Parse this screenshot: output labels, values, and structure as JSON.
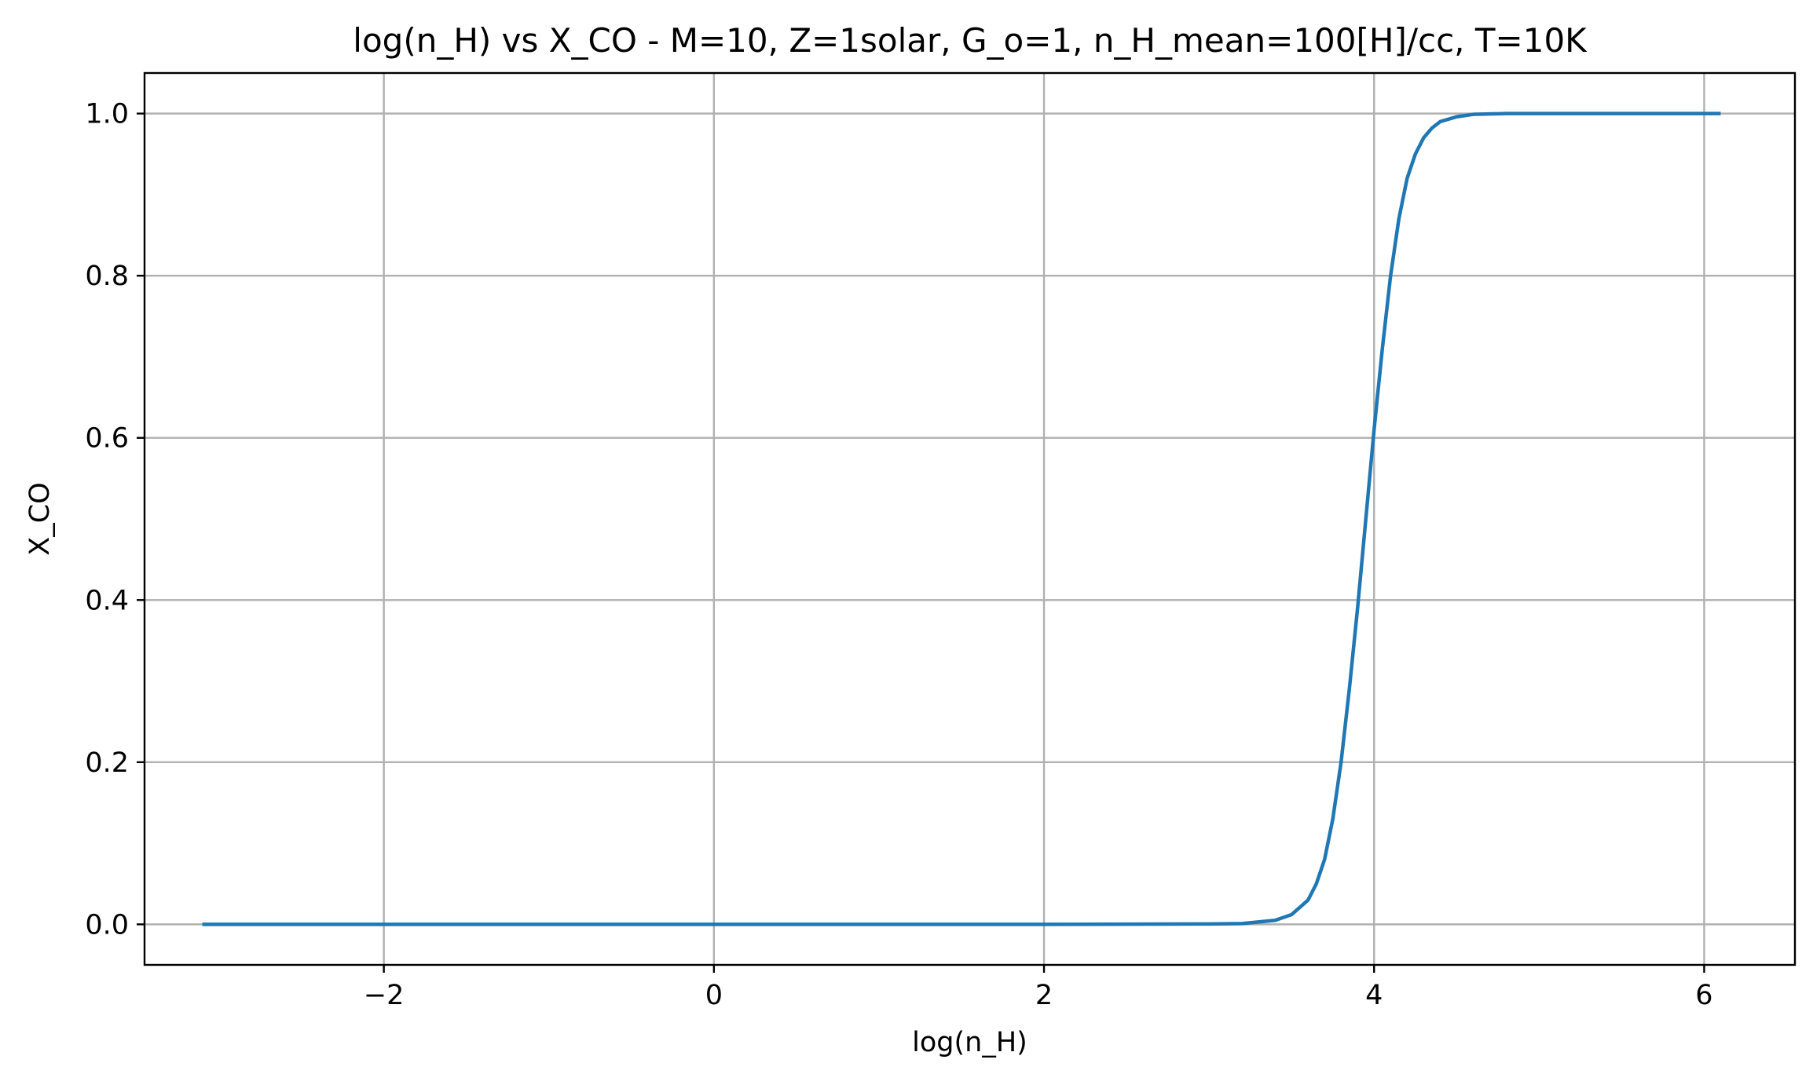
{
  "chart_data": {
    "type": "line",
    "title": "log(n_H) vs X_CO - M=10, Z=1solar, G_o=1, n_H_mean=100[H]/cc, T=10K",
    "xlabel": "log(n_H)",
    "ylabel": "X_CO",
    "xlim": [
      -3.45,
      6.55
    ],
    "ylim": [
      -0.05,
      1.05
    ],
    "grid": true,
    "x_ticks": [
      -2,
      0,
      2,
      4,
      6
    ],
    "x_tick_labels": [
      "−2",
      "0",
      "2",
      "4",
      "6"
    ],
    "y_ticks": [
      0.0,
      0.2,
      0.4,
      0.6,
      0.8,
      1.0
    ],
    "y_tick_labels": [
      "0.0",
      "0.2",
      "0.4",
      "0.6",
      "0.8",
      "1.0"
    ],
    "series": [
      {
        "color": "#1f77b4",
        "x": [
          -3.1,
          -2.0,
          -1.0,
          0.0,
          1.0,
          2.0,
          3.0,
          3.2,
          3.4,
          3.5,
          3.6,
          3.65,
          3.7,
          3.75,
          3.8,
          3.85,
          3.9,
          3.95,
          4.0,
          4.05,
          4.1,
          4.15,
          4.2,
          4.25,
          4.3,
          4.35,
          4.4,
          4.5,
          4.6,
          4.8,
          5.0,
          5.5,
          6.1
        ],
        "y": [
          0.0,
          0.0,
          0.0,
          0.0,
          0.0,
          0.0,
          0.0005,
          0.001,
          0.005,
          0.012,
          0.03,
          0.05,
          0.08,
          0.13,
          0.2,
          0.29,
          0.39,
          0.5,
          0.61,
          0.71,
          0.8,
          0.87,
          0.92,
          0.95,
          0.97,
          0.982,
          0.99,
          0.996,
          0.999,
          1.0,
          1.0,
          1.0,
          1.0
        ]
      }
    ]
  }
}
